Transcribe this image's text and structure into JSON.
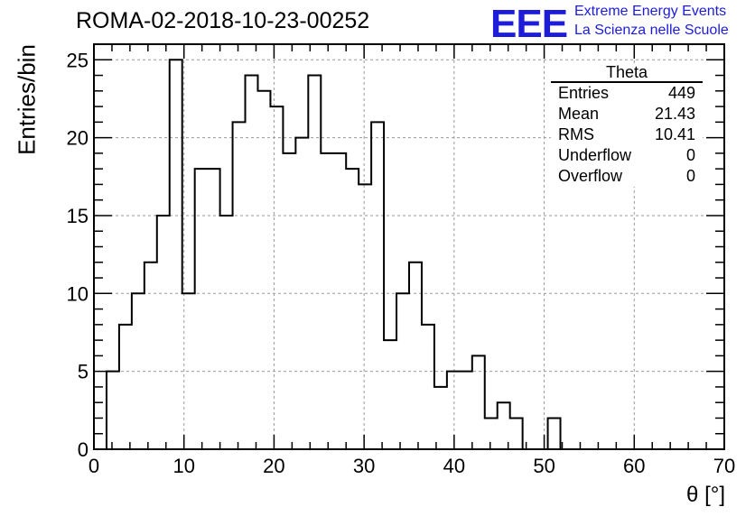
{
  "title": "ROMA-02-2018-10-23-00252",
  "logo": {
    "mark": "EEE",
    "line1": "Extreme Energy Events",
    "line2": "La Scienza nelle Scuole",
    "color": "#1c1cd9"
  },
  "stats_box": {
    "title": "Theta",
    "rows": [
      {
        "label": "Entries",
        "value": "449"
      },
      {
        "label": "Mean",
        "value": "21.43"
      },
      {
        "label": "RMS",
        "value": "10.41"
      },
      {
        "label": "Underflow",
        "value": "0"
      },
      {
        "label": "Overflow",
        "value": "0"
      }
    ]
  },
  "chart_data": {
    "type": "bar",
    "style": "step-histogram",
    "ylabel": "Entries/bin",
    "xlabel": "θ [°]",
    "xlim": [
      0,
      70
    ],
    "ylim": [
      0,
      26
    ],
    "grid": true,
    "bin_width": 1.4,
    "bin_edges_start": 0,
    "x_ticks": [
      "0",
      "10",
      "20",
      "30",
      "40",
      "50",
      "60",
      "70"
    ],
    "y_ticks": [
      "0",
      "5",
      "10",
      "15",
      "20",
      "25"
    ],
    "values": [
      0,
      5,
      8,
      10,
      12,
      15,
      25,
      10,
      18,
      18,
      15,
      21,
      24,
      23,
      22,
      19,
      20,
      24,
      19,
      19,
      18,
      17,
      21,
      7,
      10,
      12,
      8,
      4,
      5,
      5,
      6,
      2,
      3,
      2,
      0,
      0,
      2,
      0,
      0,
      0,
      0,
      0,
      0,
      0,
      0,
      0,
      0,
      0,
      0,
      0
    ]
  }
}
